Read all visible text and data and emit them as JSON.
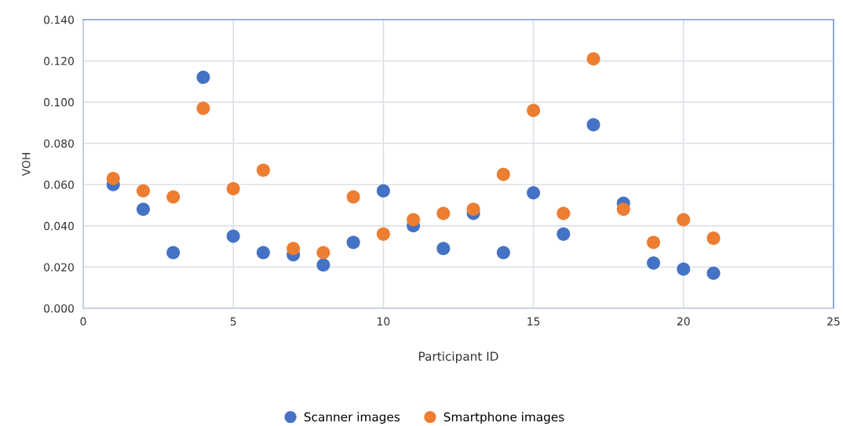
{
  "chart_data": {
    "type": "scatter",
    "xlabel": "Participant ID",
    "ylabel": "VOH",
    "x": [
      1,
      2,
      3,
      4,
      5,
      6,
      7,
      8,
      9,
      10,
      11,
      12,
      13,
      14,
      15,
      16,
      17,
      18,
      19,
      20,
      21
    ],
    "series": [
      {
        "name": "Scanner images",
        "color": "#4472c4",
        "values": [
          0.06,
          0.048,
          0.027,
          0.112,
          0.035,
          0.027,
          0.026,
          0.021,
          0.032,
          0.057,
          0.04,
          0.029,
          0.046,
          0.027,
          0.056,
          0.036,
          0.089,
          0.051,
          0.022,
          0.019,
          0.017
        ]
      },
      {
        "name": "Smartphone images",
        "color": "#ed7d31",
        "values": [
          0.063,
          0.057,
          0.054,
          0.097,
          0.058,
          0.067,
          0.029,
          0.027,
          0.054,
          0.036,
          0.043,
          0.046,
          0.048,
          0.065,
          0.096,
          0.046,
          0.121,
          0.048,
          0.032,
          0.043,
          0.034
        ]
      }
    ],
    "xlim": [
      0,
      25
    ],
    "xticks": [
      0,
      5,
      10,
      15,
      20,
      25
    ],
    "ylim": [
      0,
      0.14
    ],
    "yticks": [
      {
        "value": 0,
        "label": "0.000"
      },
      {
        "value": 0.02,
        "label": "0.020"
      },
      {
        "value": 0.04,
        "label": "0.040"
      },
      {
        "value": 0.06,
        "label": "0.060"
      },
      {
        "value": 0.08,
        "label": "0.080"
      },
      {
        "value": 0.1,
        "label": "0.100"
      },
      {
        "value": 0.12,
        "label": "0.120"
      },
      {
        "value": 0.14,
        "label": "0.140"
      }
    ],
    "grid": true,
    "legend": "bottom",
    "marker": "circle"
  }
}
